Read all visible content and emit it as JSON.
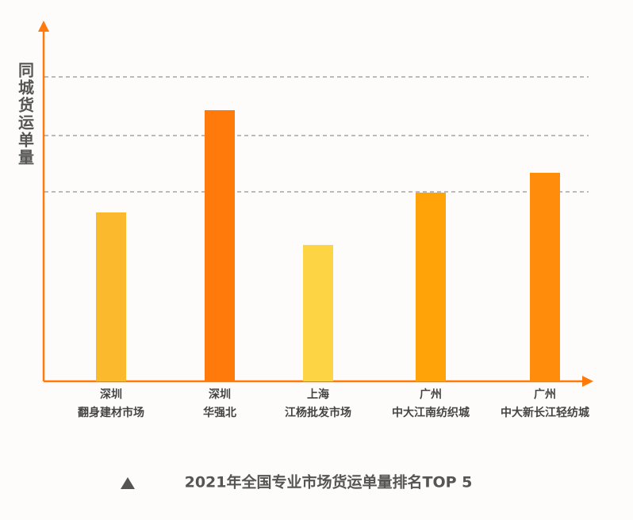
{
  "chart_data": {
    "type": "bar",
    "title": "2021年全国专业市场货运单量排名TOP 5",
    "y_label": "同城货运单量",
    "categories": [
      [
        "深圳",
        "翻身建材市场"
      ],
      [
        "深圳",
        "华强北"
      ],
      [
        "上海",
        "江杨批发市场"
      ],
      [
        "广州",
        "中大江南纺织城"
      ],
      [
        "广州",
        "中大新长江轻纺城"
      ]
    ],
    "values": [
      213,
      342,
      172,
      238,
      263
    ],
    "colors": [
      "#fbb92e",
      "#ff7a0a",
      "#fdd443",
      "#ffa308",
      "#ff8c0a"
    ],
    "ylim": [
      0,
      450
    ],
    "yticks": [
      239,
      310,
      384
    ],
    "grid": true
  }
}
